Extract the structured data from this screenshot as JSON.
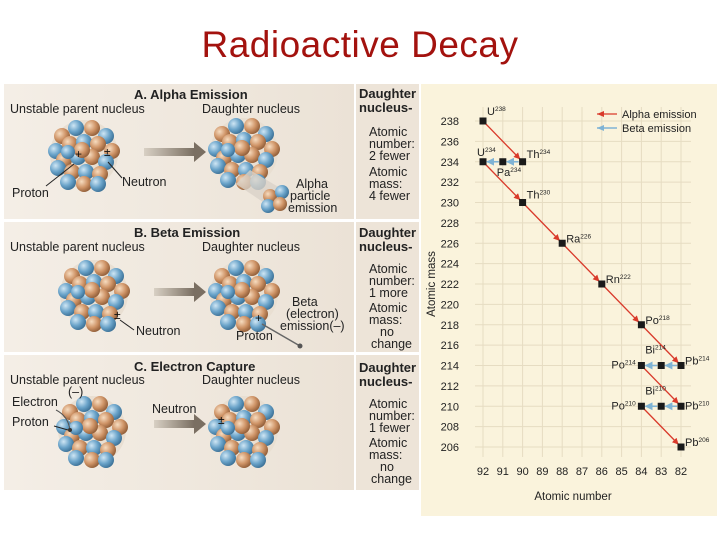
{
  "title": "Radioactive Decay",
  "sections": [
    {
      "heading": "A. Alpha Emission",
      "parent_label": "Unstable parent nucleus",
      "daughter_label": "Daughter nucleus",
      "labels": [
        "Proton",
        "Neutron",
        "Alpha",
        "particle",
        "emission"
      ],
      "side": [
        "Daughter",
        "nucleus-",
        "Atomic",
        "number:",
        "2 fewer",
        "Atomic",
        "mass:",
        "4 fewer"
      ]
    },
    {
      "heading": "B. Beta Emission",
      "parent_label": "Unstable parent nucleus",
      "daughter_label": "Daughter nucleus",
      "labels": [
        "Neutron",
        "Beta",
        "(electron)",
        "emission(–)",
        "Proton"
      ],
      "side": [
        "Daughter",
        "nucleus-",
        "Atomic",
        "number:",
        "1 more",
        "Atomic",
        "mass:",
        "no",
        "change"
      ]
    },
    {
      "heading": "C. Electron Capture",
      "parent_label": "Unstable parent nucleus",
      "daughter_label": "Daughter nucleus",
      "labels": [
        "Electron",
        "(–)",
        "Proton",
        "Neutron"
      ],
      "side": [
        "Daughter",
        "nucleus-",
        "Atomic",
        "number:",
        "1 fewer",
        "Atomic",
        "mass:",
        "no",
        "change"
      ]
    }
  ],
  "chart_data": {
    "type": "scatter",
    "xlabel": "Atomic number",
    "ylabel": "Atomic mass",
    "x_ticks": [
      92,
      91,
      90,
      89,
      88,
      87,
      86,
      85,
      84,
      83,
      82
    ],
    "y_ticks": [
      238,
      236,
      234,
      232,
      230,
      228,
      226,
      224,
      222,
      220,
      218,
      216,
      214,
      212,
      210,
      208,
      206
    ],
    "xlim": [
      92,
      82
    ],
    "ylim": [
      206,
      238
    ],
    "legend": [
      "Alpha emission",
      "Beta emission"
    ],
    "legend_placement": "top-right",
    "colors": {
      "alpha": "#d93a2b",
      "beta": "#7fb3d5",
      "point": "#1a1a1a"
    },
    "nuclides": [
      {
        "sym": "U",
        "mass": "238",
        "z": 92,
        "a": 238
      },
      {
        "sym": "Th",
        "mass": "234",
        "z": 90,
        "a": 234
      },
      {
        "sym": "Pa",
        "mass": "234",
        "z": 91,
        "a": 234
      },
      {
        "sym": "U",
        "mass": "234",
        "z": 92,
        "a": 234
      },
      {
        "sym": "Th",
        "mass": "230",
        "z": 90,
        "a": 230
      },
      {
        "sym": "Ra",
        "mass": "226",
        "z": 88,
        "a": 226
      },
      {
        "sym": "Rn",
        "mass": "222",
        "z": 86,
        "a": 222
      },
      {
        "sym": "Po",
        "mass": "218",
        "z": 84,
        "a": 218
      },
      {
        "sym": "Pb",
        "mass": "214",
        "z": 82,
        "a": 214
      },
      {
        "sym": "Bi",
        "mass": "214",
        "z": 83,
        "a": 214
      },
      {
        "sym": "Po",
        "mass": "214",
        "z": 84,
        "a": 214
      },
      {
        "sym": "Pb",
        "mass": "210",
        "z": 82,
        "a": 210
      },
      {
        "sym": "Bi",
        "mass": "210",
        "z": 83,
        "a": 210
      },
      {
        "sym": "Po",
        "mass": "210",
        "z": 84,
        "a": 210
      },
      {
        "sym": "Pb",
        "mass": "206",
        "z": 82,
        "a": 206
      }
    ],
    "alpha_decays": [
      [
        92,
        238,
        90,
        234
      ],
      [
        92,
        234,
        90,
        230
      ],
      [
        90,
        230,
        88,
        226
      ],
      [
        88,
        226,
        86,
        222
      ],
      [
        86,
        222,
        84,
        218
      ],
      [
        84,
        218,
        82,
        214
      ],
      [
        84,
        214,
        82,
        210
      ],
      [
        84,
        210,
        82,
        206
      ]
    ],
    "beta_decays": [
      [
        90,
        234,
        91,
        234
      ],
      [
        91,
        234,
        92,
        234
      ],
      [
        82,
        214,
        83,
        214
      ],
      [
        83,
        214,
        84,
        214
      ],
      [
        82,
        210,
        83,
        210
      ],
      [
        83,
        210,
        84,
        210
      ]
    ]
  }
}
